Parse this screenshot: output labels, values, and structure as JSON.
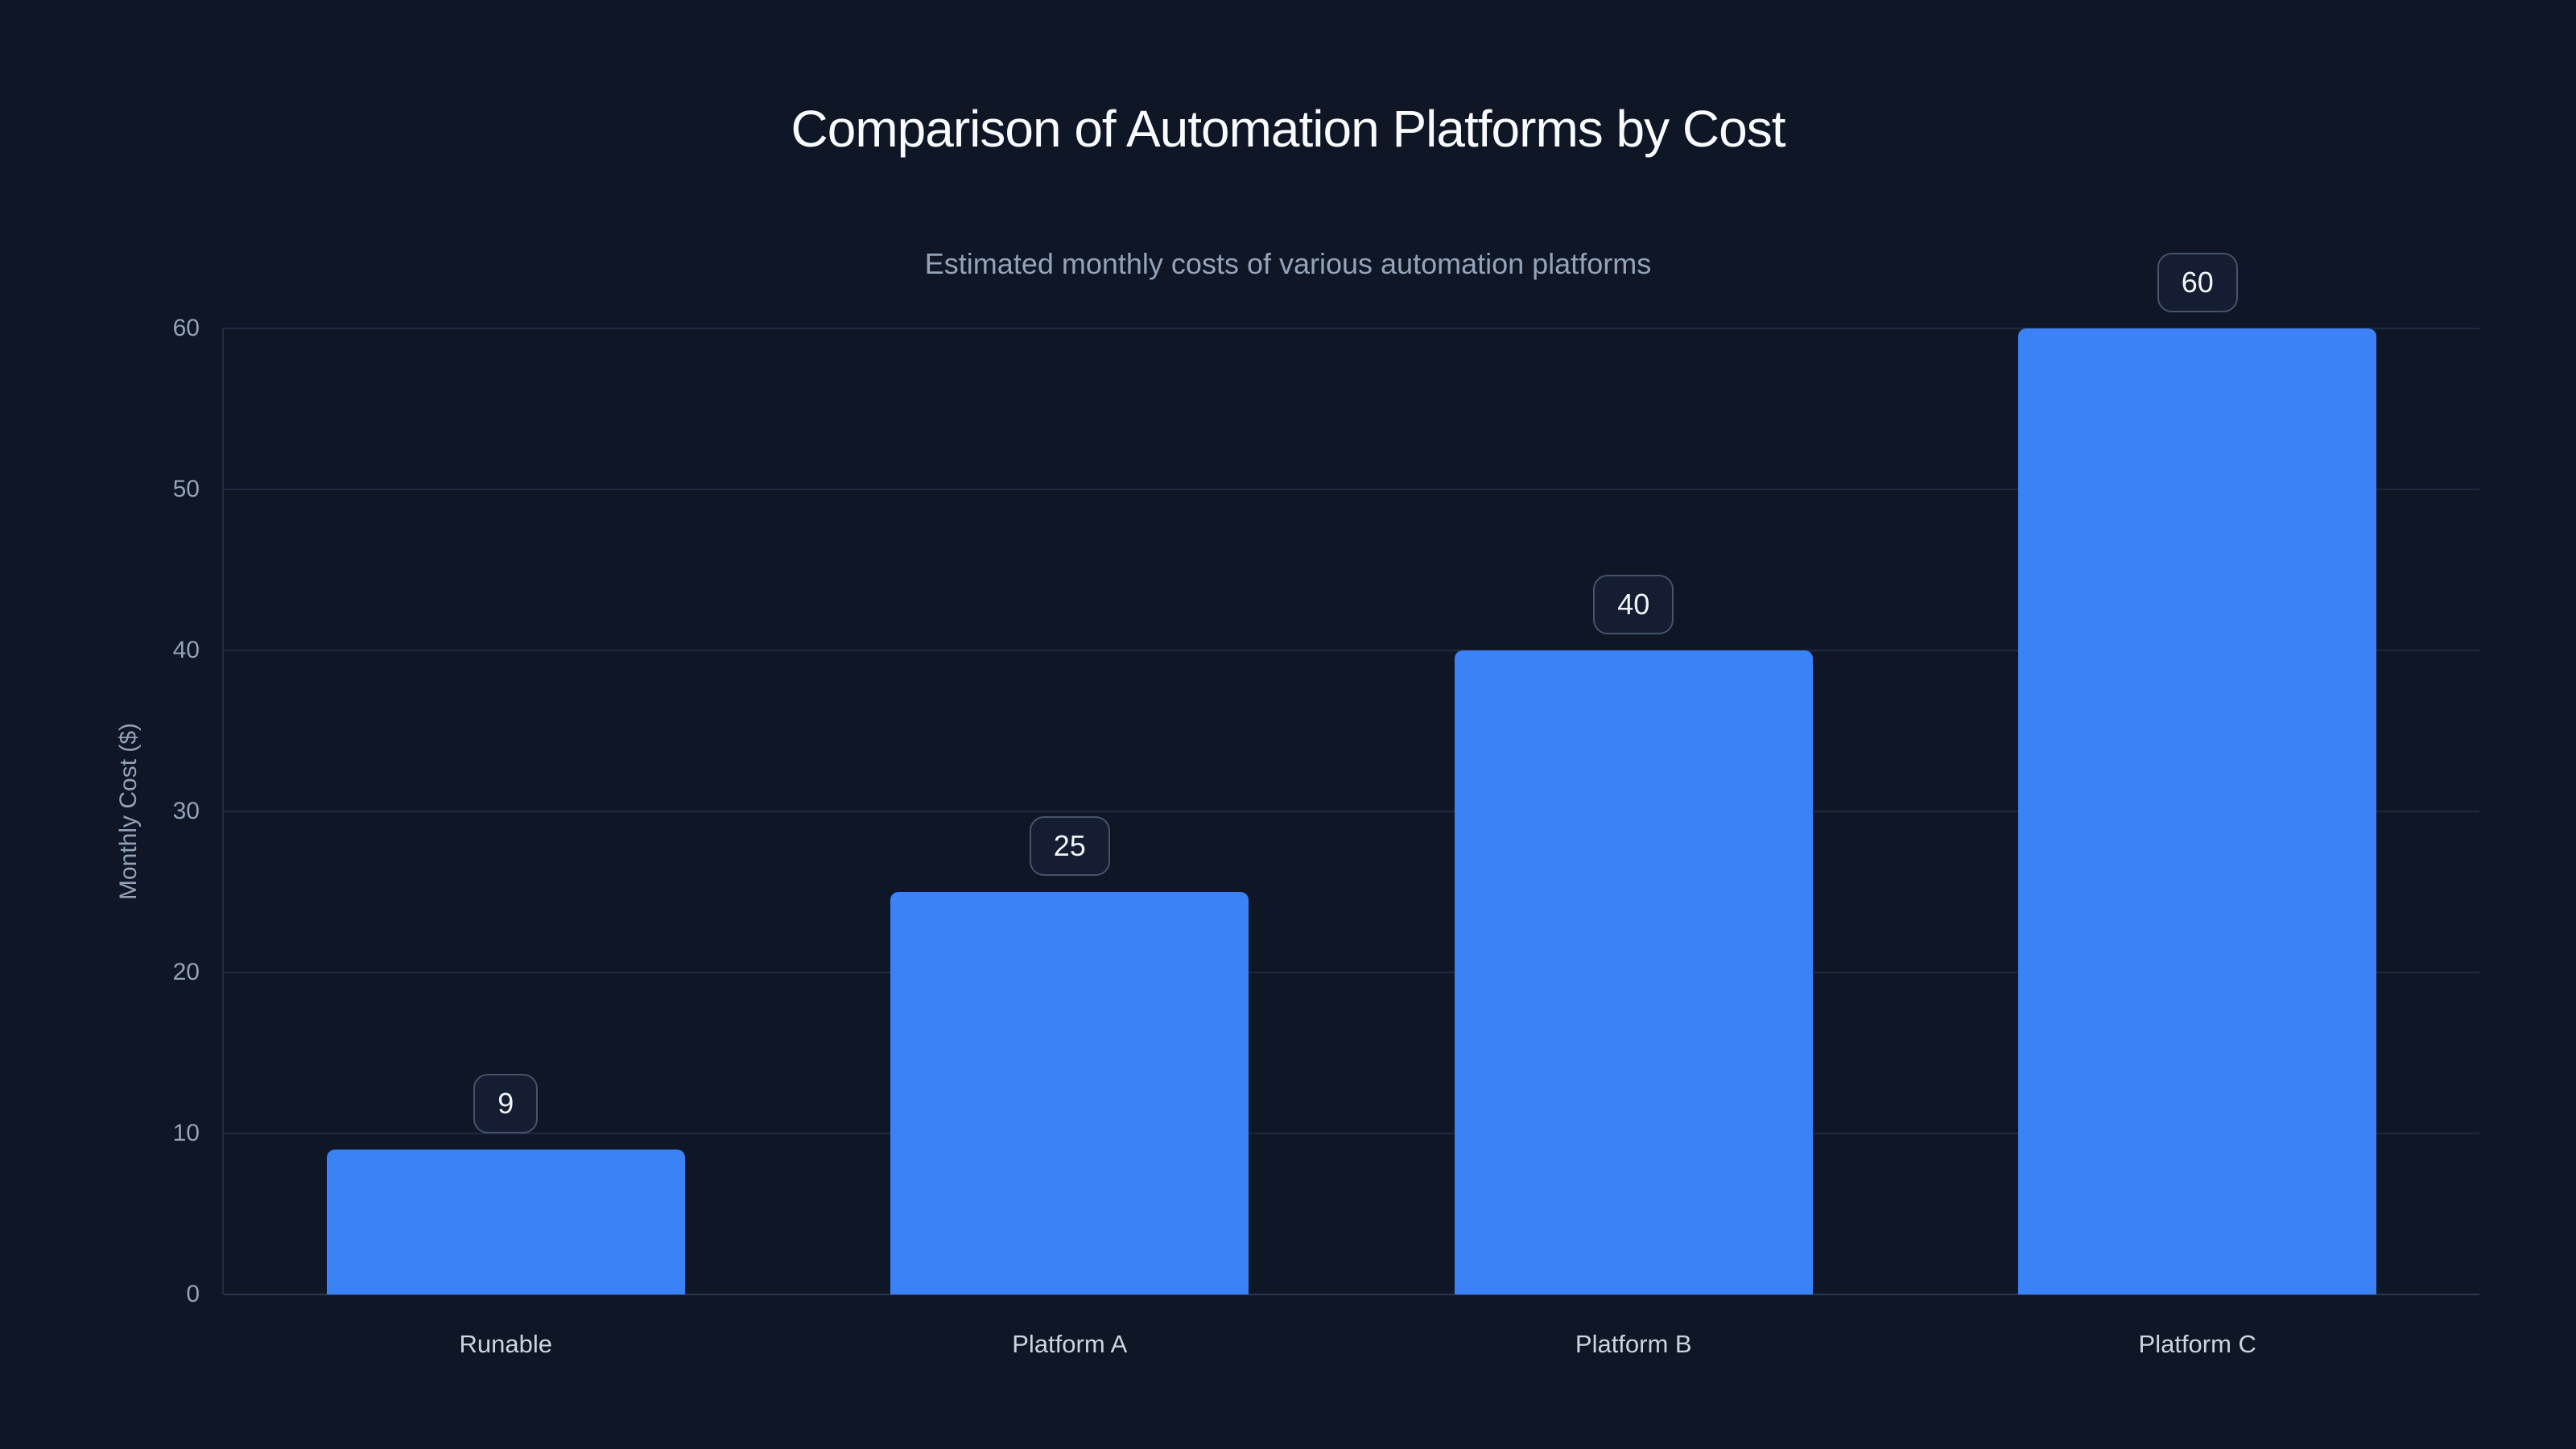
{
  "page": {
    "background": "#0f1626"
  },
  "chart_data": {
    "type": "bar",
    "title": "Comparison of Automation Platforms by Cost",
    "subtitle": "Estimated monthly costs of various automation platforms",
    "categories": [
      "Runable",
      "Platform A",
      "Platform B",
      "Platform C"
    ],
    "values": [
      9,
      25,
      40,
      60
    ],
    "bar_value_labels": [
      "9",
      "25",
      "40",
      "60"
    ],
    "xlabel": "",
    "ylabel": "Monthly Cost ($)",
    "ylim": [
      0,
      60
    ],
    "yticks": [
      0,
      10,
      20,
      30,
      40,
      50,
      60
    ],
    "grid": "horizontal-only",
    "legend": "none",
    "colors": {
      "bar": "#3b82f6",
      "background": "#0f1626",
      "gridline": "#1f2a40",
      "baseline": "#2c3850",
      "title_text": "#f8fafc",
      "subtitle_text": "#94a3b8",
      "tick_text": "#94a3b8",
      "category_text": "#cbd5e1",
      "badge_border": "#47536b",
      "badge_background": "#141d31",
      "badge_text": "#f1f5f9"
    }
  }
}
